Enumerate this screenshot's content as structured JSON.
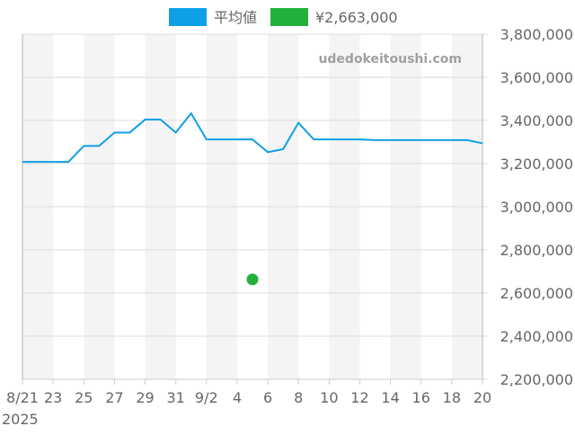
{
  "chart_data": {
    "type": "line",
    "watermark": "udedokeitoushi.com",
    "legend_position": "top",
    "grid": true,
    "ylim": [
      2200000,
      3800000
    ],
    "yticks": [
      "2,200,000",
      "2,400,000",
      "2,600,000",
      "2,800,000",
      "3,000,000",
      "3,200,000",
      "3,400,000",
      "3,600,000",
      "3,800,000"
    ],
    "ytick_values": [
      2200000,
      2400000,
      2600000,
      2800000,
      3000000,
      3200000,
      3400000,
      3600000,
      3800000
    ],
    "xticks": [
      "8/21",
      "23",
      "25",
      "27",
      "29",
      "31",
      "9/2",
      "4",
      "6",
      "8",
      "10",
      "12",
      "14",
      "16",
      "18",
      "20"
    ],
    "x_year_label": "2025",
    "x": [
      "2025-08-21",
      "2025-08-22",
      "2025-08-23",
      "2025-08-24",
      "2025-08-25",
      "2025-08-26",
      "2025-08-27",
      "2025-08-28",
      "2025-08-29",
      "2025-08-30",
      "2025-08-31",
      "2025-09-01",
      "2025-09-02",
      "2025-09-03",
      "2025-09-04",
      "2025-09-05",
      "2025-09-06",
      "2025-09-07",
      "2025-09-08",
      "2025-09-09",
      "2025-09-10",
      "2025-09-11",
      "2025-09-12",
      "2025-09-13",
      "2025-09-14",
      "2025-09-15",
      "2025-09-16",
      "2025-09-17",
      "2025-09-18",
      "2025-09-19",
      "2025-09-20"
    ],
    "series": [
      {
        "name": "平均値",
        "color": "#0ea0e6",
        "kind": "line",
        "values": [
          3208000,
          3208000,
          3208000,
          3208000,
          3282000,
          3282000,
          3344000,
          3344000,
          3404000,
          3404000,
          3344000,
          3433000,
          3312000,
          3312000,
          3312000,
          3312000,
          3253000,
          3267000,
          3389000,
          3312000,
          3312000,
          3312000,
          3312000,
          3309000,
          3309000,
          3309000,
          3309000,
          3309000,
          3309000,
          3309000,
          3294000
        ]
      },
      {
        "name": "¥2,663,000",
        "color": "#22b03a",
        "kind": "point",
        "points": [
          {
            "x": "2025-09-05",
            "y": 2663000
          }
        ]
      }
    ]
  }
}
